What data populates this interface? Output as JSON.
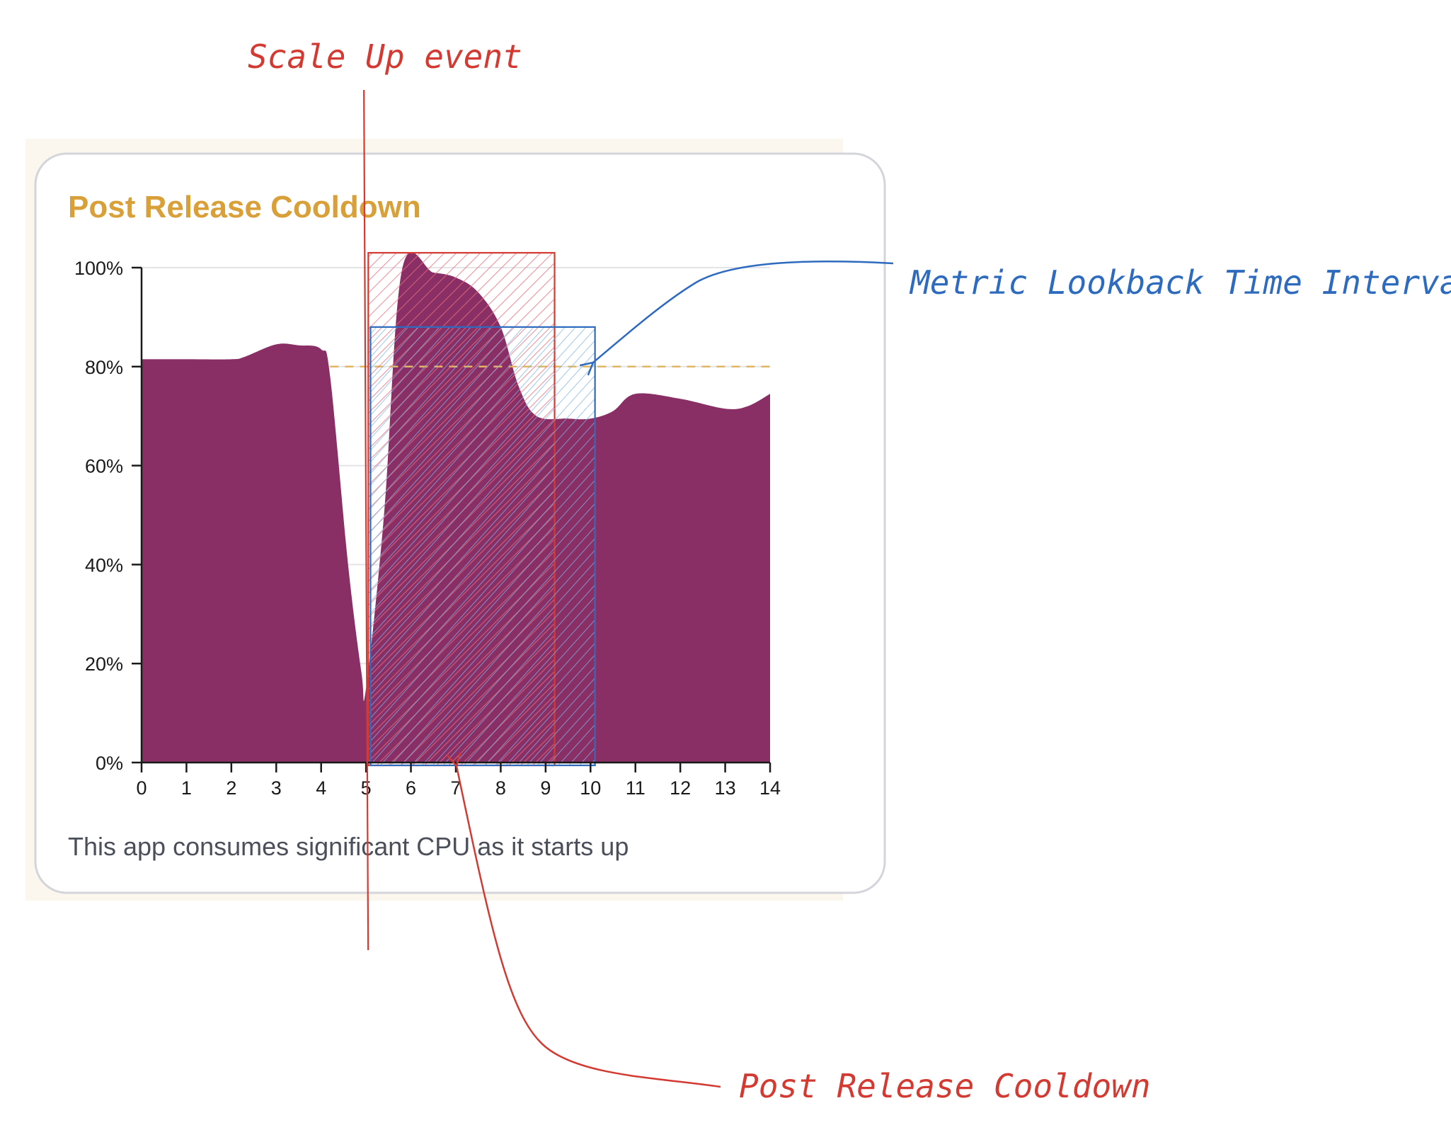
{
  "card": {
    "title": "Post Release Cooldown",
    "description": "This app consumes significant CPU as it starts up"
  },
  "annotations": {
    "scale_up": "Scale Up event",
    "lookback": "Metric Lookback Time Interval",
    "cooldown": "Post Release Cooldown"
  },
  "colors": {
    "title": "#d9a03a",
    "area": "#8a2e66",
    "threshold": "#e0b664",
    "cooldown_annotation": "#d23a32",
    "lookback_annotation": "#2e6bbf"
  },
  "chart_data": {
    "type": "area",
    "title": "Post Release Cooldown",
    "xlabel": "",
    "ylabel": "",
    "xlim": [
      0,
      14
    ],
    "ylim": [
      0,
      100
    ],
    "x_ticks": [
      0,
      1,
      2,
      3,
      4,
      5,
      6,
      7,
      8,
      9,
      10,
      11,
      12,
      13,
      14
    ],
    "y_ticks": [
      0,
      20,
      40,
      60,
      80,
      100
    ],
    "y_tick_labels": [
      "0%",
      "20%",
      "40%",
      "60%",
      "80%",
      "100%"
    ],
    "grid": true,
    "series": [
      {
        "x": [
          0,
          1,
          2,
          2.3,
          3,
          3.5,
          4,
          4.2,
          4.6,
          4.9,
          5,
          5.4,
          5.8,
          6.5,
          7,
          7.5,
          8,
          8.4,
          8.8,
          9.5,
          10,
          10.5,
          11,
          12,
          13,
          13.5,
          14
        ],
        "values": [
          81.5,
          81.5,
          81.5,
          82,
          84.5,
          84.3,
          83.5,
          78,
          40,
          18,
          15,
          50,
          99.5,
          99,
          98,
          95,
          88,
          76,
          70,
          69.5,
          69.5,
          71,
          74.5,
          73.5,
          71.5,
          72,
          74.5
        ]
      }
    ],
    "threshold": {
      "value": 80,
      "x_start": 4.2,
      "x_end": 14
    },
    "regions": [
      {
        "annotation": "Post Release Cooldown",
        "x_start": 5.05,
        "x_end": 9.2,
        "y_top": 103
      },
      {
        "annotation": "Metric Lookback Time Interval",
        "x_start": 5.1,
        "x_end": 10.1,
        "y_top": 88
      }
    ],
    "event_x": 5
  }
}
